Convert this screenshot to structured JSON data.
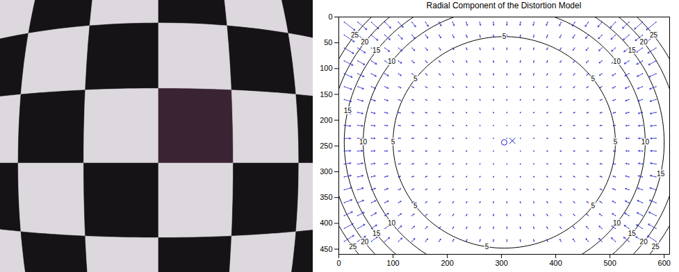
{
  "chart_data": {
    "type": "vector_field",
    "title": "Radial Component of the Distortion Model",
    "xlim": [
      0,
      610
    ],
    "xticks": [
      0,
      100,
      200,
      300,
      400,
      500,
      600
    ],
    "ylim": [
      460,
      0
    ],
    "yticks": [
      0,
      50,
      100,
      150,
      200,
      250,
      300,
      350,
      400,
      450
    ],
    "center": [
      305,
      243
    ],
    "contours": {
      "color": "#000000",
      "levels": [
        5,
        10,
        15,
        20,
        25
      ],
      "radii": [
        205,
        260,
        295,
        322,
        345
      ]
    },
    "arrows": {
      "color": "#1f1fc8",
      "x": [
        10,
        35,
        60,
        85,
        110,
        135,
        160,
        185,
        210,
        235,
        260,
        285,
        310,
        335,
        360,
        385,
        410,
        435,
        460,
        485,
        510,
        535,
        560,
        585
      ],
      "y": [
        10,
        35,
        60,
        85,
        110,
        135,
        160,
        185,
        210,
        235,
        260,
        285,
        310,
        335,
        360,
        385,
        410,
        435
      ]
    },
    "markers": [
      {
        "x": 305,
        "y": 243,
        "marker": "o",
        "color": "#1f1fc8"
      },
      {
        "x": 320,
        "y": 240,
        "marker": "x",
        "color": "#1f1fc8"
      }
    ]
  }
}
